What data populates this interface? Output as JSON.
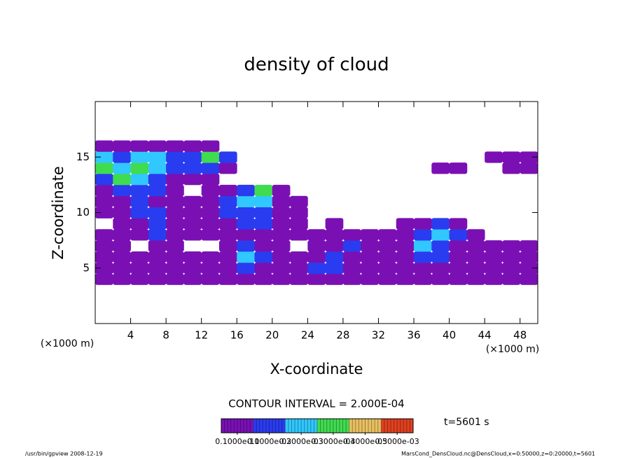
{
  "chart_data": {
    "type": "contour",
    "title": "density of cloud",
    "x_label": "X-coordinate",
    "y_label": "Z-coordinate",
    "x_unit": "(×1000 m)",
    "annotation": "CONTOUR INTERVAL = 2.000E-04",
    "time_label": "t=5601 s",
    "footer_left": "/usr/bin/gpview   2008-12-19",
    "footer_right": "MarsCond_DensCloud.nc@DensCloud,x=0:50000,z=0:20000,t=5601",
    "xlim": [
      0,
      50
    ],
    "ylim": [
      0,
      20
    ],
    "xticks": [
      4,
      8,
      12,
      16,
      20,
      24,
      28,
      32,
      36,
      40,
      44,
      48
    ],
    "yticks": [
      5,
      10,
      15
    ],
    "x": [
      1,
      3,
      5,
      7,
      9,
      11,
      13,
      15,
      17,
      19,
      21,
      23,
      25,
      27,
      29,
      31,
      33,
      35,
      37,
      39,
      41,
      43,
      45,
      47,
      49
    ],
    "z": [
      4,
      5,
      6,
      7,
      8,
      9,
      10,
      11,
      12,
      13,
      14,
      15,
      16
    ],
    "values": [
      [
        5e-05,
        5e-05,
        5e-05,
        5e-05,
        5e-05,
        5e-05,
        5e-05,
        5e-05,
        5e-05,
        5e-05,
        5e-05,
        5e-05,
        5e-05,
        5e-05,
        5e-05,
        5e-05,
        5e-05,
        5e-05,
        5e-05,
        5e-05,
        5e-05,
        5e-05,
        5e-05,
        5e-05,
        5e-05
      ],
      [
        5e-05,
        5e-05,
        5e-05,
        5e-05,
        5e-05,
        5e-05,
        5e-05,
        5e-05,
        0.0001,
        5e-05,
        5e-05,
        5e-05,
        0.0001,
        0.0001,
        5e-05,
        5e-05,
        5e-05,
        5e-05,
        5e-05,
        5e-05,
        5e-05,
        5e-05,
        5e-05,
        5e-05,
        5e-05
      ],
      [
        5e-05,
        5e-05,
        5e-05,
        5e-05,
        5e-05,
        5e-05,
        5e-05,
        5e-05,
        0.0002,
        0.0001,
        5e-05,
        5e-05,
        5e-05,
        0.0001,
        5e-05,
        5e-05,
        5e-05,
        5e-05,
        0.0001,
        0.0001,
        5e-05,
        5e-05,
        5e-05,
        5e-05,
        5e-05
      ],
      [
        5e-05,
        5e-05,
        0,
        5e-05,
        5e-05,
        0,
        0,
        5e-05,
        0.0001,
        5e-05,
        5e-05,
        0,
        5e-05,
        5e-05,
        0.0001,
        5e-05,
        5e-05,
        5e-05,
        0.0002,
        0.0001,
        5e-05,
        5e-05,
        5e-05,
        5e-05,
        5e-05
      ],
      [
        5e-05,
        5e-05,
        5e-05,
        0.0001,
        5e-05,
        5e-05,
        5e-05,
        5e-05,
        5e-05,
        5e-05,
        5e-05,
        5e-05,
        5e-05,
        5e-05,
        5e-05,
        5e-05,
        5e-05,
        5e-05,
        0.0001,
        0.0002,
        0.0001,
        5e-05,
        0,
        0,
        0
      ],
      [
        0,
        5e-05,
        5e-05,
        0.0001,
        5e-05,
        5e-05,
        5e-05,
        5e-05,
        0.0001,
        0.0001,
        5e-05,
        5e-05,
        0,
        5e-05,
        0,
        0,
        0,
        5e-05,
        5e-05,
        0.0001,
        5e-05,
        0,
        0,
        0,
        0
      ],
      [
        5e-05,
        5e-05,
        0.0001,
        0.0001,
        5e-05,
        5e-05,
        5e-05,
        0.0001,
        0.0001,
        0.0001,
        5e-05,
        5e-05,
        0,
        0,
        0,
        0,
        0,
        0,
        0,
        0,
        0,
        0,
        0,
        0,
        0
      ],
      [
        5e-05,
        5e-05,
        0.0001,
        5e-05,
        5e-05,
        5e-05,
        5e-05,
        0.0001,
        0.0002,
        0.0002,
        5e-05,
        5e-05,
        0,
        0,
        0,
        0,
        0,
        0,
        0,
        0,
        0,
        0,
        0,
        0,
        0
      ],
      [
        5e-05,
        0.0001,
        0.0001,
        0.0001,
        5e-05,
        0,
        5e-05,
        5e-05,
        0.0001,
        0.0003,
        5e-05,
        0,
        0,
        0,
        0,
        0,
        0,
        0,
        0,
        0,
        0,
        0,
        0,
        0,
        0
      ],
      [
        0.0001,
        0.0003,
        0.0002,
        0.0001,
        5e-05,
        5e-05,
        5e-05,
        0,
        0,
        0,
        0,
        0,
        0,
        0,
        0,
        0,
        0,
        0,
        0,
        0,
        0,
        0,
        0,
        0,
        0
      ],
      [
        0.0003,
        0.0002,
        0.0003,
        0.0002,
        0.0001,
        0.0001,
        0.0001,
        5e-05,
        0,
        0,
        0,
        0,
        0,
        0,
        0,
        0,
        0,
        0,
        0,
        5e-05,
        5e-05,
        0,
        0,
        5e-05,
        5e-05
      ],
      [
        0.0002,
        0.0001,
        0.0002,
        0.0002,
        0.0001,
        0.0001,
        0.0003,
        0.0001,
        0,
        0,
        0,
        0,
        0,
        0,
        0,
        0,
        0,
        0,
        0,
        0,
        0,
        0,
        5e-05,
        5e-05,
        5e-05
      ],
      [
        5e-05,
        5e-05,
        5e-05,
        5e-05,
        5e-05,
        5e-05,
        5e-05,
        0,
        0,
        0,
        0,
        0,
        0,
        0,
        0,
        0,
        0,
        0,
        0,
        0,
        0,
        0,
        0,
        0,
        0
      ]
    ],
    "colorbar": {
      "ticks": [
        {
          "value": 1e-11,
          "label": "0.1000e-10"
        },
        {
          "value": 0.0001,
          "label": "0.1000e-03"
        },
        {
          "value": 0.0002,
          "label": "0.2000e-03"
        },
        {
          "value": 0.0003,
          "label": "0.3000e-03"
        },
        {
          "value": 0.0004,
          "label": "0.4000e-03"
        },
        {
          "value": 0.0005,
          "label": "0.5000e-03"
        }
      ],
      "colors": [
        "#7a10b4",
        "#2a3cf0",
        "#30c8ff",
        "#40dc50",
        "#e8c060",
        "#e04020"
      ]
    }
  }
}
